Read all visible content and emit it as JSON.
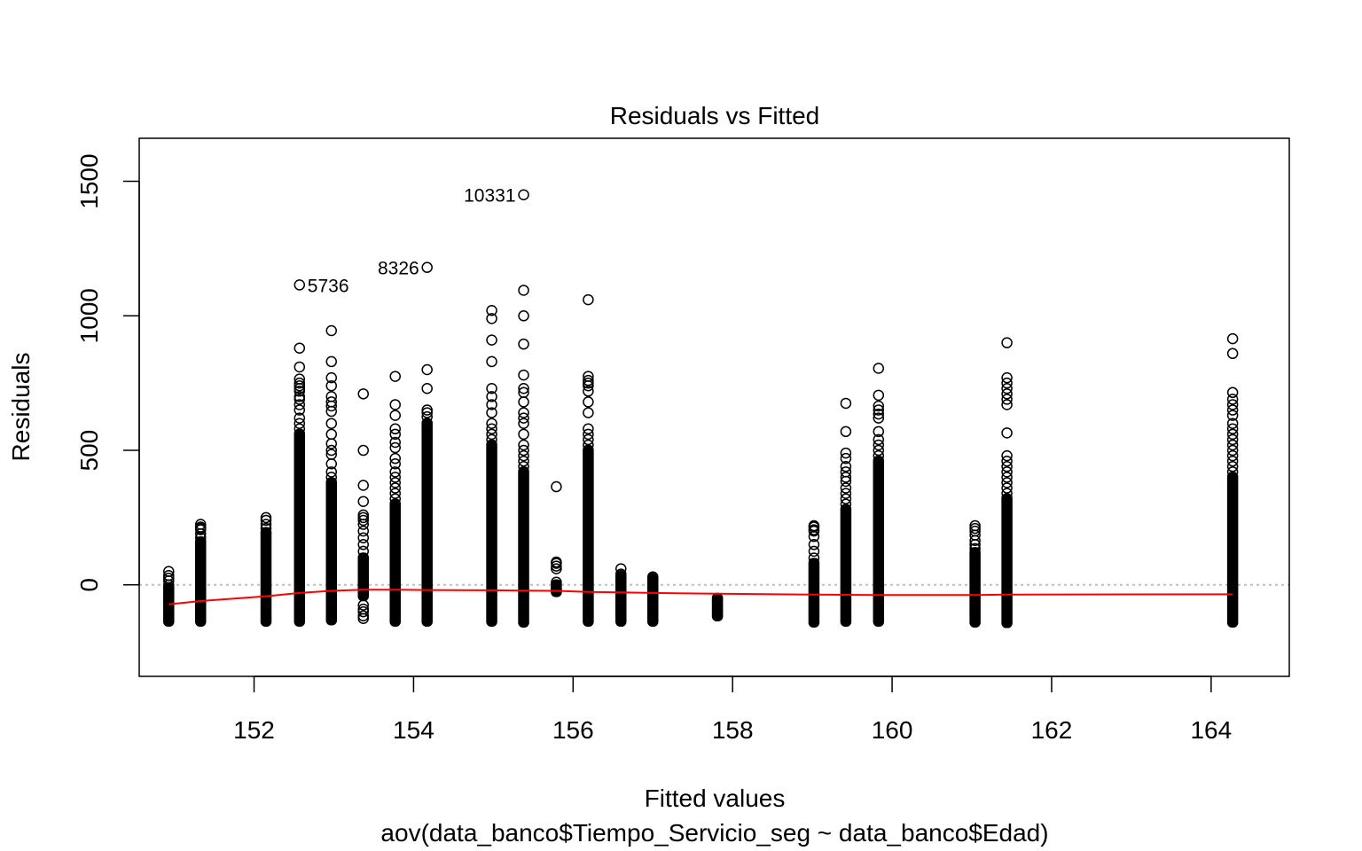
{
  "chart_data": {
    "type": "scatter",
    "title": "Residuals vs Fitted",
    "xlabel": "Fitted values",
    "subtitle": "aov(data_banco$Tiempo_Servicio_seg ~ data_banco$Edad)",
    "ylabel": "Residuals",
    "xlim": [
      150.56,
      164.98
    ],
    "ylim": [
      -340,
      1660
    ],
    "xticks": [
      {
        "value": 152,
        "label": "152"
      },
      {
        "value": 154,
        "label": "154"
      },
      {
        "value": 156,
        "label": "156"
      },
      {
        "value": 158,
        "label": "158"
      },
      {
        "value": 160,
        "label": "160"
      },
      {
        "value": 162,
        "label": "162"
      },
      {
        "value": 164,
        "label": "164"
      }
    ],
    "yticks": [
      {
        "value": 0,
        "label": "0"
      },
      {
        "value": 500,
        "label": "500"
      },
      {
        "value": 1000,
        "label": "1000"
      },
      {
        "value": 1500,
        "label": "1500"
      }
    ],
    "reference_line": {
      "y": 0,
      "style": "dotted",
      "color": "#bebebe"
    },
    "point_color": "#000000",
    "smooth_color": "#ff0000",
    "groups": [
      {
        "x": 150.93,
        "band": [
          -135,
          -10
        ],
        "points": [
          50,
          35,
          25,
          15,
          0
        ]
      },
      {
        "x": 151.33,
        "band": [
          -135,
          160
        ],
        "points": [
          225,
          215,
          210,
          205,
          190,
          175
        ]
      },
      {
        "x": 152.15,
        "band": [
          -135,
          190
        ],
        "points": [
          250,
          240,
          225,
          210,
          195
        ]
      },
      {
        "x": 152.57,
        "band": [
          -135,
          560
        ],
        "points": [
          880,
          810,
          765,
          750,
          740,
          730,
          720,
          700,
          690,
          670,
          650,
          620,
          600,
          580
        ]
      },
      {
        "x": 152.97,
        "band": [
          -130,
          380
        ],
        "points": [
          945,
          830,
          770,
          740,
          700,
          680,
          665,
          645,
          600,
          560,
          525,
          500,
          485,
          450,
          420,
          400
        ]
      },
      {
        "x": 153.37,
        "band": [
          -40,
          100
        ],
        "points": [
          710,
          500,
          370,
          310,
          260,
          250,
          240,
          225,
          200,
          175,
          150,
          125,
          -75,
          -90,
          -100,
          -115,
          -125
        ]
      },
      {
        "x": 153.77,
        "band": [
          -135,
          300
        ],
        "points": [
          775,
          670,
          630,
          580,
          560,
          530,
          510,
          470,
          450,
          420,
          400,
          380,
          360,
          340,
          320
        ]
      },
      {
        "x": 154.17,
        "band": [
          -135,
          600
        ],
        "points": [
          800,
          730,
          650,
          640,
          625
        ]
      },
      {
        "x": 154.98,
        "band": [
          -135,
          520
        ],
        "points": [
          1020,
          990,
          910,
          830,
          730,
          700,
          670,
          640,
          600,
          580,
          560,
          540
        ]
      },
      {
        "x": 155.38,
        "band": [
          -138,
          420
        ],
        "points": [
          1095,
          1000,
          895,
          780,
          730,
          715,
          680,
          640,
          620,
          600,
          560,
          520,
          500,
          480,
          460,
          440
        ]
      },
      {
        "x": 155.79,
        "band": [
          -25,
          0
        ],
        "points": [
          365,
          85,
          80,
          70,
          60,
          10,
          -15
        ]
      },
      {
        "x": 156.19,
        "band": [
          -135,
          500
        ],
        "points": [
          1060,
          775,
          760,
          750,
          740,
          720,
          680,
          640,
          580,
          560,
          540,
          520
        ]
      },
      {
        "x": 156.6,
        "band": [
          -135,
          25
        ],
        "points": [
          60,
          40,
          35,
          30
        ]
      },
      {
        "x": 157.0,
        "band": [
          -135,
          15
        ],
        "points": [
          30,
          25,
          20
        ]
      },
      {
        "x": 157.81,
        "band": [
          -115,
          -50
        ],
        "points": [
          -50,
          -60,
          -75,
          -90,
          -100,
          -115
        ]
      },
      {
        "x": 159.02,
        "band": [
          -138,
          80
        ],
        "points": [
          220,
          215,
          205,
          200,
          180,
          150,
          125,
          100
        ]
      },
      {
        "x": 159.42,
        "band": [
          -135,
          280
        ],
        "points": [
          675,
          570,
          490,
          470,
          440,
          420,
          400,
          385,
          360,
          340,
          320,
          300
        ]
      },
      {
        "x": 159.83,
        "band": [
          -135,
          460
        ],
        "points": [
          805,
          705,
          665,
          650,
          635,
          620,
          570,
          540,
          520,
          500,
          480
        ]
      },
      {
        "x": 161.04,
        "band": [
          -138,
          120
        ],
        "points": [
          220,
          210,
          200,
          185,
          165,
          150,
          135
        ]
      },
      {
        "x": 161.44,
        "band": [
          -140,
          320
        ],
        "points": [
          900,
          770,
          750,
          730,
          710,
          690,
          670,
          565,
          480,
          460,
          440,
          420,
          400,
          380,
          360,
          340
        ]
      },
      {
        "x": 164.27,
        "band": [
          -138,
          400
        ],
        "points": [
          915,
          860,
          715,
          690,
          670,
          650,
          630,
          600,
          580,
          560,
          540,
          520,
          500,
          480,
          460,
          440,
          420
        ]
      }
    ],
    "labeled_points": [
      {
        "x": 155.38,
        "y": 1450,
        "label": "10331",
        "side": "left"
      },
      {
        "x": 154.17,
        "y": 1180,
        "label": "8326",
        "side": "left"
      },
      {
        "x": 152.57,
        "y": 1115,
        "label": "5736",
        "side": "right"
      }
    ],
    "smooth_line": {
      "x": [
        150.93,
        151.33,
        152.15,
        152.57,
        152.97,
        153.37,
        153.77,
        154.17,
        154.98,
        155.38,
        155.79,
        156.19,
        156.6,
        157.0,
        157.81,
        159.02,
        159.42,
        159.83,
        161.04,
        161.44,
        164.27
      ],
      "y": [
        -72,
        -60,
        -42,
        -30,
        -22,
        -18,
        -18,
        -19,
        -20,
        -21,
        -22,
        -26,
        -28,
        -30,
        -33,
        -36,
        -37,
        -38,
        -38,
        -36,
        -35
      ]
    }
  }
}
